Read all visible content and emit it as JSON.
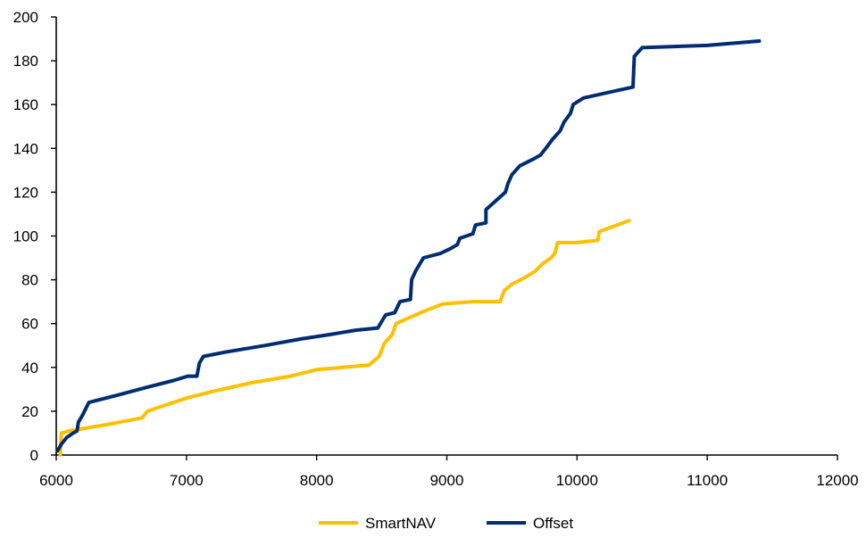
{
  "chart_data": {
    "type": "line",
    "title": "",
    "xlabel": "",
    "ylabel": "",
    "xlim": [
      6000,
      12000
    ],
    "ylim": [
      0,
      200
    ],
    "xticks": [
      6000,
      7000,
      8000,
      9000,
      10000,
      11000,
      12000
    ],
    "yticks": [
      0,
      20,
      40,
      60,
      80,
      100,
      120,
      140,
      160,
      180,
      200
    ],
    "grid": false,
    "legend_position": "bottom",
    "series": [
      {
        "name": "SmartNAV",
        "color": "#FFC000",
        "points": [
          [
            6030,
            0
          ],
          [
            6040,
            10
          ],
          [
            6100,
            11
          ],
          [
            6200,
            12
          ],
          [
            6400,
            14
          ],
          [
            6660,
            17
          ],
          [
            6700,
            20
          ],
          [
            7000,
            26
          ],
          [
            7200,
            29
          ],
          [
            7500,
            33
          ],
          [
            7800,
            36
          ],
          [
            8000,
            39
          ],
          [
            8200,
            40
          ],
          [
            8400,
            41
          ],
          [
            8480,
            45
          ],
          [
            8520,
            51
          ],
          [
            8580,
            55
          ],
          [
            8610,
            60
          ],
          [
            8800,
            65
          ],
          [
            8970,
            69
          ],
          [
            9200,
            70
          ],
          [
            9410,
            70
          ],
          [
            9440,
            75
          ],
          [
            9500,
            78
          ],
          [
            9600,
            81
          ],
          [
            9680,
            84
          ],
          [
            9730,
            87
          ],
          [
            9800,
            90
          ],
          [
            9830,
            92
          ],
          [
            9850,
            97
          ],
          [
            10000,
            97
          ],
          [
            10160,
            98
          ],
          [
            10170,
            102
          ],
          [
            10400,
            107
          ]
        ]
      },
      {
        "name": "Offset",
        "color": "#002D72",
        "points": [
          [
            6010,
            2
          ],
          [
            6040,
            5
          ],
          [
            6080,
            8
          ],
          [
            6130,
            10
          ],
          [
            6160,
            11
          ],
          [
            6170,
            15
          ],
          [
            6200,
            18
          ],
          [
            6250,
            24
          ],
          [
            6450,
            27
          ],
          [
            6700,
            31
          ],
          [
            6900,
            34
          ],
          [
            7010,
            36
          ],
          [
            7080,
            36
          ],
          [
            7100,
            42
          ],
          [
            7130,
            45
          ],
          [
            7300,
            47
          ],
          [
            7600,
            50
          ],
          [
            7880,
            53
          ],
          [
            8100,
            55
          ],
          [
            8300,
            57
          ],
          [
            8470,
            58
          ],
          [
            8530,
            64
          ],
          [
            8600,
            65
          ],
          [
            8640,
            70
          ],
          [
            8720,
            71
          ],
          [
            8730,
            80
          ],
          [
            8760,
            84
          ],
          [
            8820,
            90
          ],
          [
            8950,
            92
          ],
          [
            9020,
            94
          ],
          [
            9080,
            96
          ],
          [
            9100,
            99
          ],
          [
            9200,
            101
          ],
          [
            9220,
            105
          ],
          [
            9300,
            106
          ],
          [
            9300,
            112
          ],
          [
            9450,
            120
          ],
          [
            9470,
            124
          ],
          [
            9500,
            128
          ],
          [
            9560,
            132
          ],
          [
            9660,
            135
          ],
          [
            9720,
            137
          ],
          [
            9760,
            140
          ],
          [
            9810,
            144
          ],
          [
            9870,
            148
          ],
          [
            9900,
            152
          ],
          [
            9950,
            156
          ],
          [
            9970,
            160
          ],
          [
            10050,
            163
          ],
          [
            10200,
            165
          ],
          [
            10430,
            168
          ],
          [
            10440,
            182
          ],
          [
            10500,
            186
          ],
          [
            11000,
            187
          ],
          [
            11400,
            189
          ]
        ]
      }
    ]
  }
}
